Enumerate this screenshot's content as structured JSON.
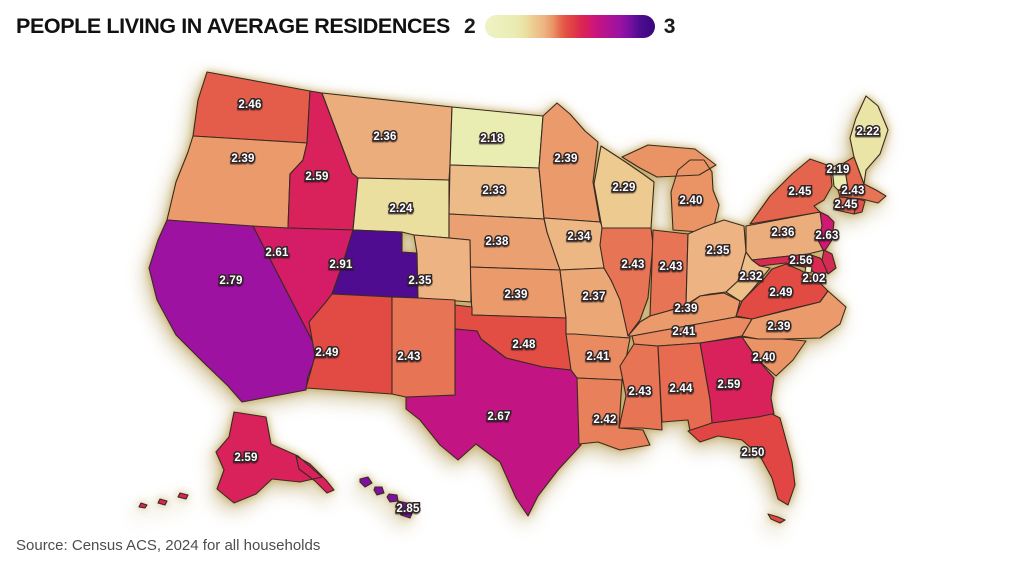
{
  "title": "PEOPLE LIVING IN AVERAGE RESIDENCES",
  "legend": {
    "min_label": "2",
    "max_label": "3",
    "gradient_stops": [
      {
        "t": 0.0,
        "color": "#f0f2c6"
      },
      {
        "t": 0.18,
        "color": "#e9edb2"
      },
      {
        "t": 0.24,
        "color": "#ebdfa0"
      },
      {
        "t": 0.29,
        "color": "#ecca90"
      },
      {
        "t": 0.35,
        "color": "#edb382"
      },
      {
        "t": 0.4,
        "color": "#ea9466"
      },
      {
        "t": 0.44,
        "color": "#e66b50"
      },
      {
        "t": 0.48,
        "color": "#e24e44"
      },
      {
        "t": 0.52,
        "color": "#e03d45"
      },
      {
        "t": 0.56,
        "color": "#da2a52"
      },
      {
        "t": 0.6,
        "color": "#d81e5f"
      },
      {
        "t": 0.63,
        "color": "#d01974"
      },
      {
        "t": 0.67,
        "color": "#c31484"
      },
      {
        "t": 0.73,
        "color": "#b01394"
      },
      {
        "t": 0.79,
        "color": "#9d12a1"
      },
      {
        "t": 0.85,
        "color": "#7b10a1"
      },
      {
        "t": 0.91,
        "color": "#4f0c90"
      },
      {
        "t": 1.0,
        "color": "#38077e"
      }
    ]
  },
  "source": "Source: Census ACS, 2024 for all households",
  "chart_data": {
    "type": "choropleth",
    "region": "United States",
    "metric": "People living in average residences (average household size)",
    "value_range": [
      2,
      3
    ],
    "states": [
      {
        "code": "WA",
        "name": "Washington",
        "value": 2.46
      },
      {
        "code": "OR",
        "name": "Oregon",
        "value": 2.39
      },
      {
        "code": "CA",
        "name": "California",
        "value": 2.79
      },
      {
        "code": "ID",
        "name": "Idaho",
        "value": 2.59
      },
      {
        "code": "NV",
        "name": "Nevada",
        "value": 2.61
      },
      {
        "code": "MT",
        "name": "Montana",
        "value": 2.36
      },
      {
        "code": "WY",
        "name": "Wyoming",
        "value": 2.24
      },
      {
        "code": "UT",
        "name": "Utah",
        "value": 2.91
      },
      {
        "code": "CO",
        "name": "Colorado",
        "value": 2.35
      },
      {
        "code": "AZ",
        "name": "Arizona",
        "value": 2.49
      },
      {
        "code": "NM",
        "name": "New Mexico",
        "value": 2.43
      },
      {
        "code": "ND",
        "name": "North Dakota",
        "value": 2.18
      },
      {
        "code": "SD",
        "name": "South Dakota",
        "value": 2.33
      },
      {
        "code": "NE",
        "name": "Nebraska",
        "value": 2.38
      },
      {
        "code": "KS",
        "name": "Kansas",
        "value": 2.39
      },
      {
        "code": "OK",
        "name": "Oklahoma",
        "value": 2.48
      },
      {
        "code": "TX",
        "name": "Texas",
        "value": 2.67
      },
      {
        "code": "MN",
        "name": "Minnesota",
        "value": 2.39
      },
      {
        "code": "IA",
        "name": "Iowa",
        "value": 2.34
      },
      {
        "code": "MO",
        "name": "Missouri",
        "value": 2.37
      },
      {
        "code": "AR",
        "name": "Arkansas",
        "value": 2.41
      },
      {
        "code": "LA",
        "name": "Louisiana",
        "value": 2.42
      },
      {
        "code": "WI",
        "name": "Wisconsin",
        "value": 2.29
      },
      {
        "code": "IL",
        "name": "Illinois",
        "value": 2.43
      },
      {
        "code": "MS",
        "name": "Mississippi",
        "value": 2.43
      },
      {
        "code": "MI",
        "name": "Michigan",
        "value": 2.4
      },
      {
        "code": "IN",
        "name": "Indiana",
        "value": 2.43
      },
      {
        "code": "OH",
        "name": "Ohio",
        "value": 2.35
      },
      {
        "code": "KY",
        "name": "Kentucky",
        "value": 2.39
      },
      {
        "code": "TN",
        "name": "Tennessee",
        "value": 2.41
      },
      {
        "code": "AL",
        "name": "Alabama",
        "value": 2.44
      },
      {
        "code": "GA",
        "name": "Georgia",
        "value": 2.59
      },
      {
        "code": "FL",
        "name": "Florida",
        "value": 2.5
      },
      {
        "code": "SC",
        "name": "South Carolina",
        "value": 2.4
      },
      {
        "code": "NC",
        "name": "North Carolina",
        "value": 2.39
      },
      {
        "code": "VA",
        "name": "Virginia",
        "value": 2.49
      },
      {
        "code": "WV",
        "name": "West Virginia",
        "value": 2.32
      },
      {
        "code": "MD",
        "name": "Maryland",
        "value": 2.56
      },
      {
        "code": "DC",
        "name": "District of Columbia",
        "value": 2.02
      },
      {
        "code": "NJ",
        "name": "New Jersey",
        "value": 2.63
      },
      {
        "code": "PA",
        "name": "Pennsylvania",
        "value": 2.36
      },
      {
        "code": "NY",
        "name": "New York",
        "value": 2.45
      },
      {
        "code": "VT",
        "name": "Vermont",
        "value": 2.19
      },
      {
        "code": "ME",
        "name": "Maine",
        "value": 2.22
      },
      {
        "code": "MA",
        "name": "Massachusetts",
        "value": 2.43
      },
      {
        "code": "CT",
        "name": "Connecticut",
        "value": 2.45
      },
      {
        "code": "AK",
        "name": "Alaska",
        "value": 2.59
      },
      {
        "code": "HI",
        "name": "Hawaii",
        "value": 2.85
      }
    ],
    "states_shown_without_value_label": [
      {
        "code": "NH",
        "name": "New Hampshire",
        "approx_color": "#e4674e"
      },
      {
        "code": "RI",
        "name": "Rhode Island",
        "approx_color": "#e2544a"
      },
      {
        "code": "DE",
        "name": "Delaware",
        "approx_color": "#d42b55"
      }
    ]
  }
}
